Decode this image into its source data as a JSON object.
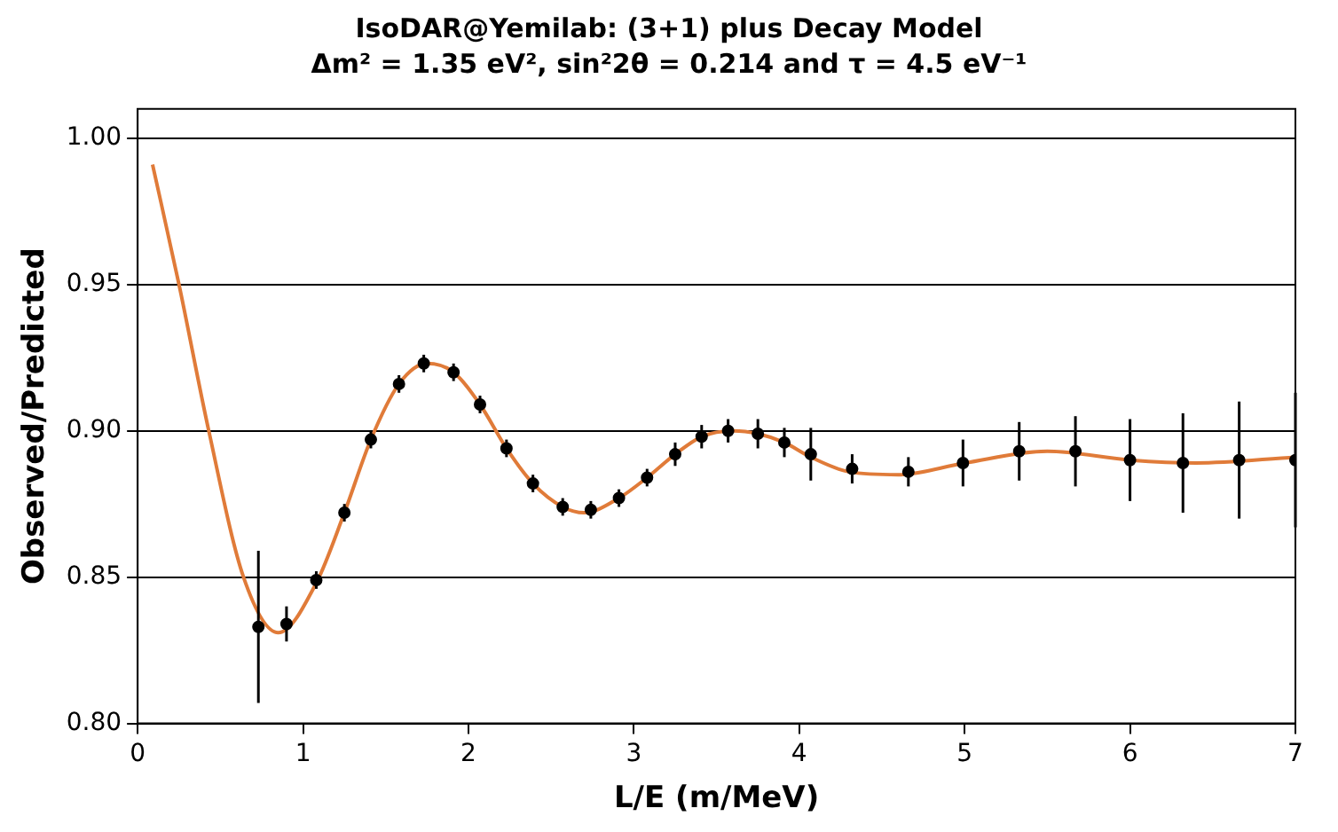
{
  "chart_data": {
    "type": "scatter",
    "title": "IsoDAR@Yemilab:  (3+1) plus Decay Model",
    "subtitle": "Δm² = 1.35 eV², sin²2θ = 0.214 and τ = 4.5 eV⁻¹",
    "xlabel": "L/E (m/MeV)",
    "ylabel": "Observed/Predicted",
    "xlim": [
      0,
      7
    ],
    "ylim": [
      0.8,
      1.01
    ],
    "xticks": [
      0,
      1,
      2,
      3,
      4,
      5,
      6,
      7
    ],
    "yticks": [
      {
        "value": 0.8,
        "label": "0.80"
      },
      {
        "value": 0.85,
        "label": "0.85"
      },
      {
        "value": 0.9,
        "label": "0.90"
      },
      {
        "value": 0.95,
        "label": "0.95"
      },
      {
        "value": 1.0,
        "label": "1.00"
      }
    ],
    "grid": "y",
    "legend": false,
    "series": [
      {
        "type": "line",
        "color": "#e07b39",
        "marker": "none",
        "line_style": "solid",
        "x": [
          0.09,
          0.25,
          0.43,
          0.64,
          0.85,
          1.08,
          1.25,
          1.41,
          1.58,
          1.75,
          1.91,
          2.07,
          2.23,
          2.39,
          2.57,
          2.7,
          2.91,
          3.08,
          3.25,
          3.41,
          3.6,
          3.75,
          3.91,
          4.07,
          4.3,
          4.6,
          5.0,
          5.5,
          6.0,
          6.4,
          7.0
        ],
        "values": [
          0.991,
          0.95,
          0.9,
          0.85,
          0.831,
          0.848,
          0.872,
          0.897,
          0.916,
          0.923,
          0.92,
          0.909,
          0.894,
          0.882,
          0.874,
          0.872,
          0.877,
          0.884,
          0.892,
          0.898,
          0.9,
          0.899,
          0.896,
          0.891,
          0.886,
          0.885,
          0.889,
          0.893,
          0.89,
          0.889,
          0.891
        ]
      },
      {
        "type": "scatter",
        "color": "#000000",
        "marker": "circle",
        "x": [
          0.73,
          0.9,
          1.08,
          1.25,
          1.41,
          1.58,
          1.73,
          1.91,
          2.07,
          2.23,
          2.39,
          2.57,
          2.74,
          2.91,
          3.08,
          3.25,
          3.41,
          3.57,
          3.75,
          3.91,
          4.07,
          4.32,
          4.66,
          4.99,
          5.33,
          5.67,
          6.0,
          6.32,
          6.66,
          7.0
        ],
        "values": [
          0.833,
          0.834,
          0.849,
          0.872,
          0.897,
          0.916,
          0.923,
          0.92,
          0.909,
          0.894,
          0.882,
          0.874,
          0.873,
          0.877,
          0.884,
          0.892,
          0.898,
          0.9,
          0.899,
          0.896,
          0.892,
          0.887,
          0.886,
          0.889,
          0.893,
          0.893,
          0.89,
          0.889,
          0.89,
          0.89
        ],
        "errors": [
          0.026,
          0.006,
          0.003,
          0.003,
          0.003,
          0.003,
          0.003,
          0.003,
          0.003,
          0.003,
          0.003,
          0.003,
          0.003,
          0.003,
          0.003,
          0.004,
          0.004,
          0.004,
          0.005,
          0.005,
          0.009,
          0.005,
          0.005,
          0.008,
          0.01,
          0.012,
          0.014,
          0.017,
          0.02,
          0.023
        ]
      }
    ]
  }
}
